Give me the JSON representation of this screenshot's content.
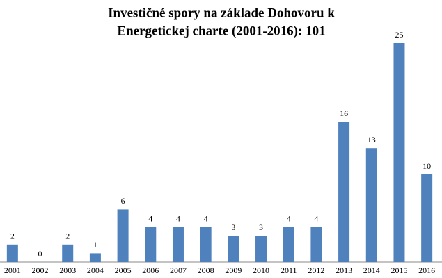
{
  "chart_data": {
    "type": "bar",
    "title": [
      "Investičné spory na základe Dohovoru k",
      "Energetickej charte (2001-2016): 101"
    ],
    "categories": [
      "2001",
      "2002",
      "2003",
      "2004",
      "2005",
      "2006",
      "2007",
      "2008",
      "2009",
      "2010",
      "2011",
      "2012",
      "2013",
      "2014",
      "2015",
      "2016"
    ],
    "values": [
      2,
      0,
      2,
      1,
      6,
      4,
      4,
      4,
      3,
      3,
      4,
      4,
      16,
      13,
      25,
      10
    ],
    "color": "#4f81bd"
  }
}
